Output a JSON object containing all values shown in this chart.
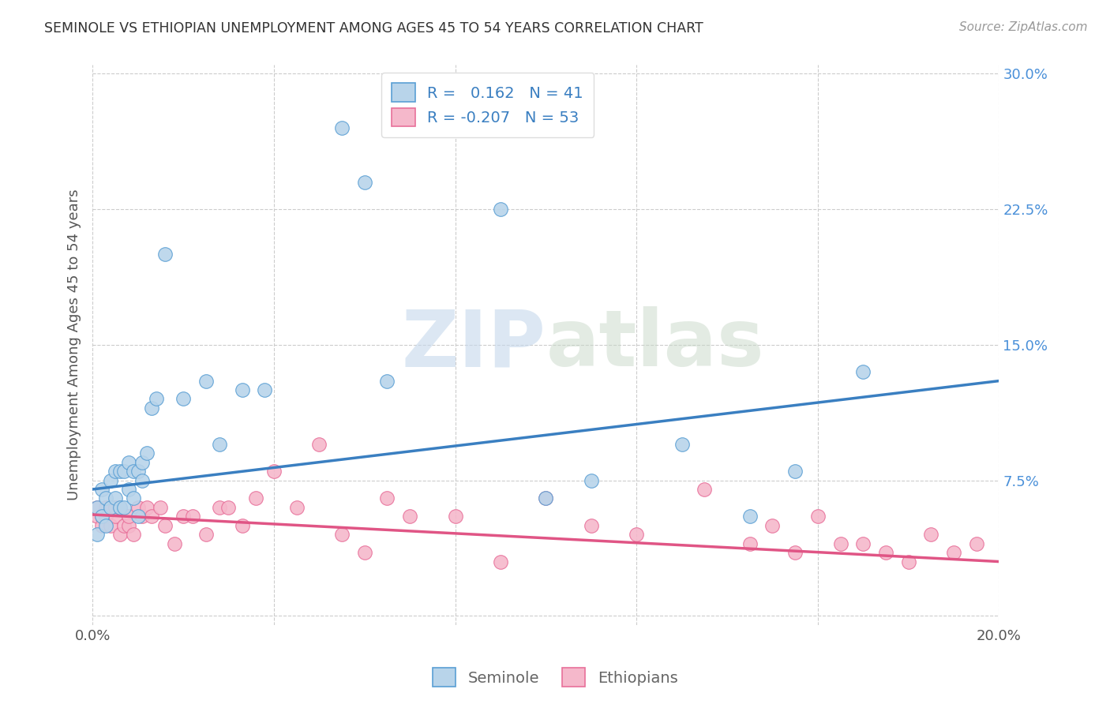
{
  "title": "SEMINOLE VS ETHIOPIAN UNEMPLOYMENT AMONG AGES 45 TO 54 YEARS CORRELATION CHART",
  "source": "Source: ZipAtlas.com",
  "ylabel": "Unemployment Among Ages 45 to 54 years",
  "xlim": [
    0.0,
    0.2
  ],
  "ylim": [
    -0.005,
    0.305
  ],
  "watermark_zip": "ZIP",
  "watermark_atlas": "atlas",
  "seminole_R": 0.162,
  "seminole_N": 41,
  "ethiopian_R": -0.207,
  "ethiopian_N": 53,
  "seminole_color": "#b8d4ea",
  "ethiopian_color": "#f5b8cb",
  "seminole_edge_color": "#5a9fd4",
  "ethiopian_edge_color": "#e8709a",
  "seminole_line_color": "#3a7fc1",
  "ethiopian_line_color": "#e05585",
  "tick_label_color": "#4a90d9",
  "background_color": "#ffffff",
  "grid_color": "#cccccc",
  "seminole_x": [
    0.001,
    0.001,
    0.002,
    0.002,
    0.003,
    0.003,
    0.004,
    0.004,
    0.005,
    0.005,
    0.006,
    0.006,
    0.007,
    0.007,
    0.008,
    0.008,
    0.009,
    0.009,
    0.01,
    0.01,
    0.011,
    0.011,
    0.012,
    0.013,
    0.014,
    0.016,
    0.02,
    0.025,
    0.028,
    0.033,
    0.038,
    0.055,
    0.06,
    0.065,
    0.09,
    0.1,
    0.11,
    0.13,
    0.145,
    0.155,
    0.17
  ],
  "seminole_y": [
    0.045,
    0.06,
    0.055,
    0.07,
    0.05,
    0.065,
    0.06,
    0.075,
    0.065,
    0.08,
    0.06,
    0.08,
    0.06,
    0.08,
    0.07,
    0.085,
    0.065,
    0.08,
    0.055,
    0.08,
    0.075,
    0.085,
    0.09,
    0.115,
    0.12,
    0.2,
    0.12,
    0.13,
    0.095,
    0.125,
    0.125,
    0.27,
    0.24,
    0.13,
    0.225,
    0.065,
    0.075,
    0.095,
    0.055,
    0.08,
    0.135
  ],
  "ethiopian_x": [
    0.001,
    0.001,
    0.002,
    0.002,
    0.003,
    0.003,
    0.004,
    0.005,
    0.005,
    0.006,
    0.006,
    0.007,
    0.008,
    0.008,
    0.009,
    0.01,
    0.011,
    0.012,
    0.013,
    0.015,
    0.016,
    0.018,
    0.02,
    0.022,
    0.025,
    0.028,
    0.03,
    0.033,
    0.036,
    0.04,
    0.045,
    0.05,
    0.055,
    0.06,
    0.065,
    0.07,
    0.08,
    0.09,
    0.1,
    0.11,
    0.12,
    0.135,
    0.145,
    0.15,
    0.155,
    0.16,
    0.165,
    0.17,
    0.175,
    0.18,
    0.185,
    0.19,
    0.195
  ],
  "ethiopian_y": [
    0.055,
    0.06,
    0.05,
    0.055,
    0.055,
    0.06,
    0.05,
    0.055,
    0.06,
    0.045,
    0.06,
    0.05,
    0.05,
    0.055,
    0.045,
    0.06,
    0.055,
    0.06,
    0.055,
    0.06,
    0.05,
    0.04,
    0.055,
    0.055,
    0.045,
    0.06,
    0.06,
    0.05,
    0.065,
    0.08,
    0.06,
    0.095,
    0.045,
    0.035,
    0.065,
    0.055,
    0.055,
    0.03,
    0.065,
    0.05,
    0.045,
    0.07,
    0.04,
    0.05,
    0.035,
    0.055,
    0.04,
    0.04,
    0.035,
    0.03,
    0.045,
    0.035,
    0.04
  ],
  "blue_line_y0": 0.07,
  "blue_line_y1": 0.13,
  "pink_line_y0": 0.056,
  "pink_line_y1": 0.03
}
